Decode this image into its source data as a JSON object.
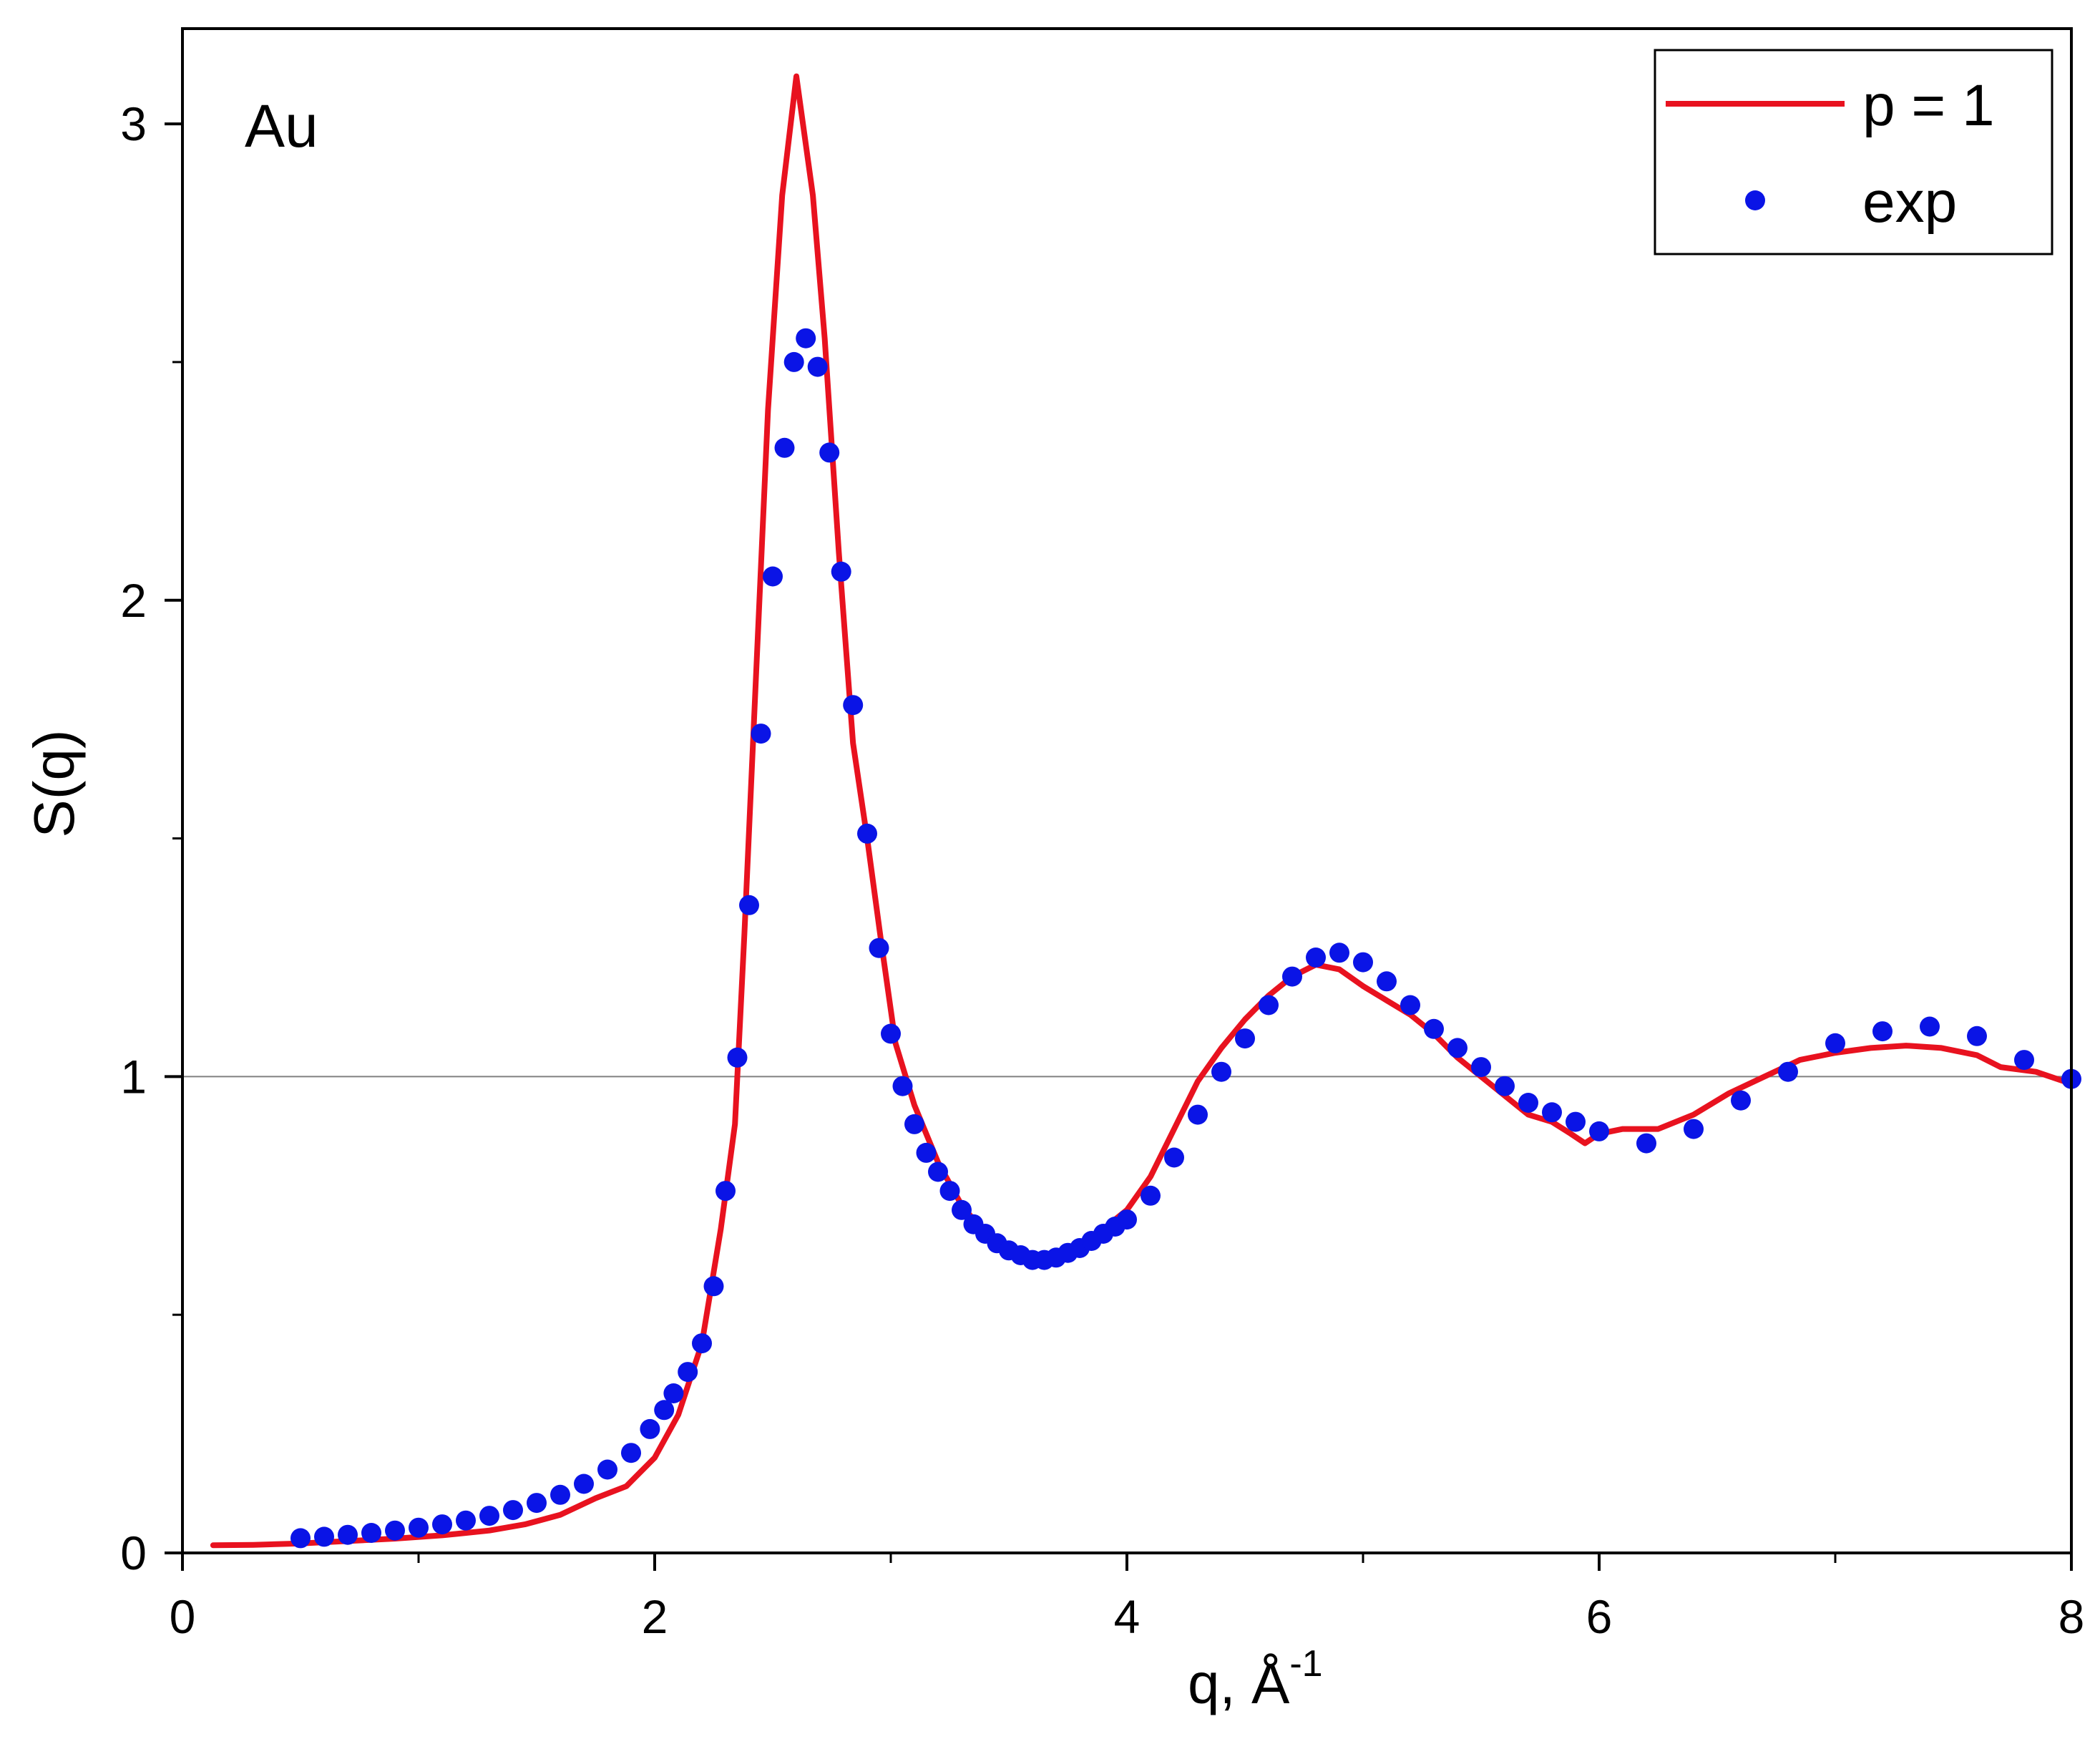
{
  "chart_data": {
    "type": "line",
    "title": "",
    "annotation": "Au",
    "xlabel": "q, Å",
    "xlabel_sup": "-1",
    "ylabel": "S(q)",
    "xlim": [
      0,
      8
    ],
    "ylim": [
      0,
      3.2
    ],
    "x_ticks": [
      "0",
      "2",
      "4",
      "6",
      "8"
    ],
    "y_ticks": [
      "0",
      "1",
      "2",
      "3"
    ],
    "reference_line": {
      "y": 1,
      "color": "#808080"
    },
    "legend": {
      "placement": "top-right"
    },
    "series": [
      {
        "name": "p = 1",
        "kind": "line",
        "color": "#e8121f",
        "points": [
          [
            0.13,
            0.016
          ],
          [
            0.3,
            0.017
          ],
          [
            0.5,
            0.02
          ],
          [
            0.7,
            0.025
          ],
          [
            0.9,
            0.03
          ],
          [
            1.1,
            0.037
          ],
          [
            1.3,
            0.047
          ],
          [
            1.45,
            0.06
          ],
          [
            1.6,
            0.08
          ],
          [
            1.75,
            0.115
          ],
          [
            1.88,
            0.14
          ],
          [
            2.0,
            0.2
          ],
          [
            2.1,
            0.29
          ],
          [
            2.2,
            0.44
          ],
          [
            2.28,
            0.68
          ],
          [
            2.34,
            0.9
          ],
          [
            2.38,
            1.3
          ],
          [
            2.43,
            1.85
          ],
          [
            2.48,
            2.4
          ],
          [
            2.54,
            2.85
          ],
          [
            2.6,
            3.1
          ],
          [
            2.67,
            2.85
          ],
          [
            2.72,
            2.55
          ],
          [
            2.78,
            2.1
          ],
          [
            2.84,
            1.7
          ],
          [
            2.9,
            1.5
          ],
          [
            2.96,
            1.28
          ],
          [
            3.02,
            1.07
          ],
          [
            3.1,
            0.94
          ],
          [
            3.2,
            0.82
          ],
          [
            3.3,
            0.73
          ],
          [
            3.4,
            0.67
          ],
          [
            3.5,
            0.635
          ],
          [
            3.6,
            0.615
          ],
          [
            3.7,
            0.625
          ],
          [
            3.8,
            0.65
          ],
          [
            3.9,
            0.68
          ],
          [
            4.0,
            0.72
          ],
          [
            4.1,
            0.79
          ],
          [
            4.2,
            0.89
          ],
          [
            4.3,
            0.99
          ],
          [
            4.4,
            1.06
          ],
          [
            4.5,
            1.12
          ],
          [
            4.6,
            1.17
          ],
          [
            4.7,
            1.21
          ],
          [
            4.8,
            1.235
          ],
          [
            4.9,
            1.225
          ],
          [
            5.0,
            1.19
          ],
          [
            5.1,
            1.16
          ],
          [
            5.2,
            1.13
          ],
          [
            5.3,
            1.09
          ],
          [
            5.4,
            1.04
          ],
          [
            5.5,
            1.0
          ],
          [
            5.6,
            0.96
          ],
          [
            5.7,
            0.92
          ],
          [
            5.8,
            0.905
          ],
          [
            5.88,
            0.88
          ],
          [
            5.94,
            0.86
          ],
          [
            6.0,
            0.88
          ],
          [
            6.1,
            0.89
          ],
          [
            6.25,
            0.89
          ],
          [
            6.4,
            0.92
          ],
          [
            6.55,
            0.965
          ],
          [
            6.7,
            1.0
          ],
          [
            6.85,
            1.035
          ],
          [
            7.0,
            1.05
          ],
          [
            7.15,
            1.06
          ],
          [
            7.3,
            1.065
          ],
          [
            7.45,
            1.06
          ],
          [
            7.6,
            1.045
          ],
          [
            7.7,
            1.02
          ],
          [
            7.85,
            1.01
          ],
          [
            8.0,
            0.985
          ]
        ]
      },
      {
        "name": "exp",
        "kind": "scatter",
        "color": "#0a14e6",
        "points": [
          [
            0.5,
            0.031
          ],
          [
            0.6,
            0.034
          ],
          [
            0.7,
            0.038
          ],
          [
            0.8,
            0.042
          ],
          [
            0.9,
            0.047
          ],
          [
            1.0,
            0.053
          ],
          [
            1.1,
            0.06
          ],
          [
            1.2,
            0.068
          ],
          [
            1.3,
            0.078
          ],
          [
            1.4,
            0.09
          ],
          [
            1.5,
            0.105
          ],
          [
            1.6,
            0.122
          ],
          [
            1.7,
            0.145
          ],
          [
            1.8,
            0.175
          ],
          [
            1.9,
            0.21
          ],
          [
            1.98,
            0.26
          ],
          [
            2.04,
            0.3
          ],
          [
            2.08,
            0.335
          ],
          [
            2.14,
            0.38
          ],
          [
            2.2,
            0.44
          ],
          [
            2.25,
            0.56
          ],
          [
            2.3,
            0.76
          ],
          [
            2.35,
            1.04
          ],
          [
            2.4,
            1.36
          ],
          [
            2.45,
            1.72
          ],
          [
            2.5,
            2.05
          ],
          [
            2.55,
            2.32
          ],
          [
            2.59,
            2.5
          ],
          [
            2.64,
            2.55
          ],
          [
            2.69,
            2.49
          ],
          [
            2.74,
            2.31
          ],
          [
            2.79,
            2.06
          ],
          [
            2.84,
            1.78
          ],
          [
            2.9,
            1.51
          ],
          [
            2.95,
            1.27
          ],
          [
            3.0,
            1.09
          ],
          [
            3.05,
            0.98
          ],
          [
            3.1,
            0.9
          ],
          [
            3.15,
            0.84
          ],
          [
            3.2,
            0.8
          ],
          [
            3.25,
            0.76
          ],
          [
            3.3,
            0.72
          ],
          [
            3.35,
            0.69
          ],
          [
            3.4,
            0.67
          ],
          [
            3.45,
            0.65
          ],
          [
            3.5,
            0.635
          ],
          [
            3.55,
            0.625
          ],
          [
            3.6,
            0.615
          ],
          [
            3.65,
            0.615
          ],
          [
            3.7,
            0.62
          ],
          [
            3.75,
            0.63
          ],
          [
            3.8,
            0.64
          ],
          [
            3.85,
            0.655
          ],
          [
            3.9,
            0.67
          ],
          [
            3.95,
            0.685
          ],
          [
            4.0,
            0.7
          ],
          [
            4.1,
            0.75
          ],
          [
            4.2,
            0.83
          ],
          [
            4.3,
            0.92
          ],
          [
            4.4,
            1.01
          ],
          [
            4.5,
            1.08
          ],
          [
            4.6,
            1.15
          ],
          [
            4.7,
            1.21
          ],
          [
            4.8,
            1.25
          ],
          [
            4.9,
            1.26
          ],
          [
            5.0,
            1.24
          ],
          [
            5.1,
            1.2
          ],
          [
            5.2,
            1.15
          ],
          [
            5.3,
            1.1
          ],
          [
            5.4,
            1.06
          ],
          [
            5.5,
            1.02
          ],
          [
            5.6,
            0.98
          ],
          [
            5.7,
            0.945
          ],
          [
            5.8,
            0.925
          ],
          [
            5.9,
            0.905
          ],
          [
            6.0,
            0.885
          ],
          [
            6.2,
            0.86
          ],
          [
            6.4,
            0.89
          ],
          [
            6.6,
            0.95
          ],
          [
            6.8,
            1.01
          ],
          [
            7.0,
            1.07
          ],
          [
            7.2,
            1.095
          ],
          [
            7.4,
            1.105
          ],
          [
            7.6,
            1.085
          ],
          [
            7.8,
            1.035
          ],
          [
            8.0,
            0.995
          ]
        ]
      }
    ]
  }
}
